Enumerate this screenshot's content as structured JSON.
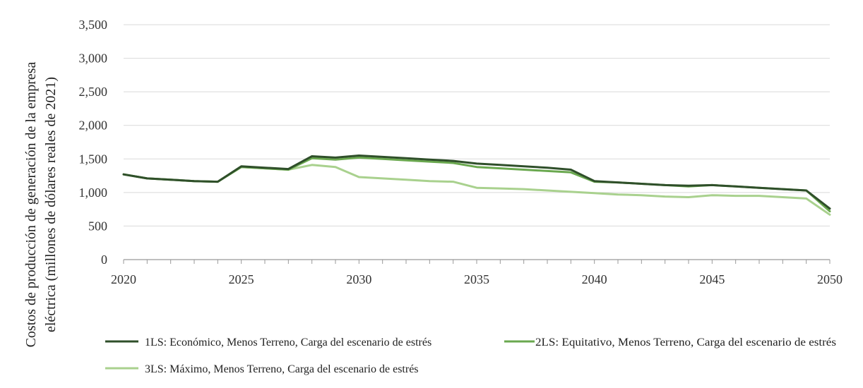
{
  "chart_data": {
    "type": "line",
    "ylabel_lines": [
      "Costos de producción de generación de la empresa",
      "eléctrica (millones de dólares reales de 2021)"
    ],
    "xlabel": "",
    "x_ticks": [
      "2020",
      "2025",
      "2030",
      "2035",
      "2040",
      "2045",
      "2050"
    ],
    "y_ticks": [
      "0",
      "500",
      "1,000",
      "1,500",
      "2,000",
      "2,500",
      "3,000",
      "3,500"
    ],
    "xlim": [
      2020,
      2050
    ],
    "ylim": [
      0,
      3500
    ],
    "grid": "horizontal",
    "legend_position": "bottom",
    "x": [
      2020,
      2021,
      2022,
      2023,
      2024,
      2025,
      2026,
      2027,
      2028,
      2029,
      2030,
      2031,
      2032,
      2033,
      2034,
      2035,
      2036,
      2037,
      2038,
      2039,
      2040,
      2041,
      2042,
      2043,
      2044,
      2045,
      2046,
      2047,
      2048,
      2049,
      2050
    ],
    "series": [
      {
        "name": "1LS: Económico, Menos Terreno, Carga del escenario de estrés",
        "color": "#2f4f2a",
        "values": [
          1270,
          1210,
          1190,
          1170,
          1160,
          1390,
          1370,
          1350,
          1540,
          1520,
          1550,
          1530,
          1510,
          1490,
          1470,
          1430,
          1410,
          1390,
          1370,
          1340,
          1170,
          1150,
          1130,
          1110,
          1100,
          1110,
          1090,
          1070,
          1050,
          1030,
          760
        ]
      },
      {
        "name": "2LS: Equitativo, Menos Terreno, Carga del escenario de estrés",
        "color": "#6aa84f",
        "values": [
          1270,
          1210,
          1190,
          1170,
          1160,
          1380,
          1360,
          1340,
          1510,
          1490,
          1520,
          1500,
          1480,
          1460,
          1440,
          1380,
          1360,
          1340,
          1320,
          1300,
          1160,
          1150,
          1130,
          1110,
          1090,
          1110,
          1090,
          1070,
          1050,
          1030,
          720
        ]
      },
      {
        "name": "3LS: Máximo, Menos Terreno, Carga del escenario de estrés",
        "color": "#a9d18e",
        "values": [
          1270,
          1210,
          1190,
          1170,
          1160,
          1380,
          1360,
          1340,
          1410,
          1380,
          1230,
          1210,
          1190,
          1170,
          1160,
          1070,
          1060,
          1050,
          1030,
          1010,
          990,
          970,
          960,
          940,
          930,
          960,
          950,
          950,
          930,
          910,
          670
        ]
      }
    ]
  }
}
